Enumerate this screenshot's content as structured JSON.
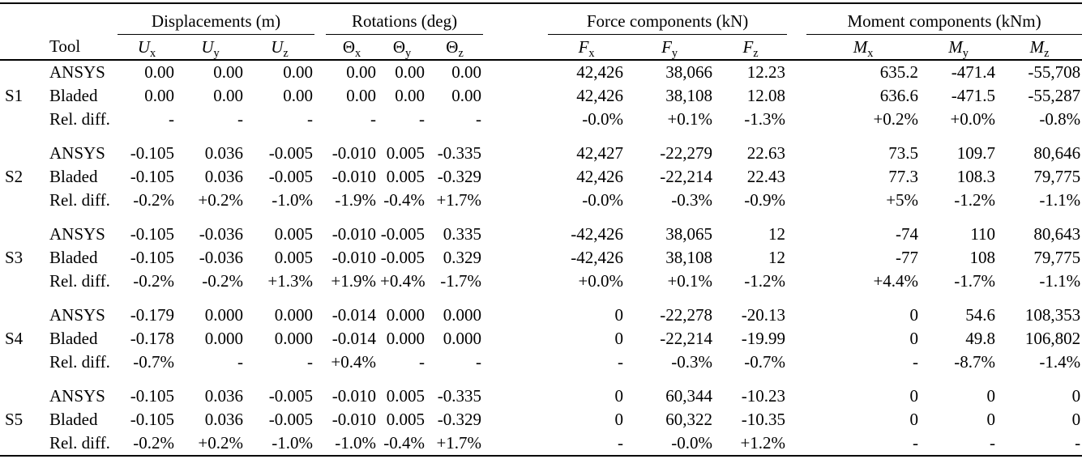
{
  "table": {
    "tool_header": "Tool",
    "row_labels": [
      "ANSYS",
      "Bladed",
      "Rel. diff."
    ],
    "column_groups": [
      {
        "key": "u",
        "label": "Displacements (m)",
        "italic": true,
        "columns": [
          {
            "main": "U",
            "sub": "x"
          },
          {
            "main": "U",
            "sub": "y"
          },
          {
            "main": "U",
            "sub": "z"
          }
        ]
      },
      {
        "key": "theta",
        "label": "Rotations (deg)",
        "italic": false,
        "columns": [
          {
            "main": "Θ",
            "sub": "x"
          },
          {
            "main": "Θ",
            "sub": "y"
          },
          {
            "main": "Θ",
            "sub": "z"
          }
        ]
      },
      {
        "key": "f",
        "label": "Force components (kN)",
        "italic": true,
        "columns": [
          {
            "main": "F",
            "sub": "x"
          },
          {
            "main": "F",
            "sub": "y"
          },
          {
            "main": "F",
            "sub": "z"
          }
        ]
      },
      {
        "key": "m",
        "label": "Moment components (kNm)",
        "italic": true,
        "columns": [
          {
            "main": "M",
            "sub": "x"
          },
          {
            "main": "M",
            "sub": "y"
          },
          {
            "main": "M",
            "sub": "z"
          }
        ]
      }
    ],
    "row_groups": [
      {
        "id": "S1",
        "rows": [
          {
            "tool": "ANSYS",
            "values": [
              "0.00",
              "0.00",
              "0.00",
              "0.00",
              "0.00",
              "0.00",
              "42,426",
              "38,066",
              "12.23",
              "635.2",
              "-471.4",
              "-55,708"
            ]
          },
          {
            "tool": "Bladed",
            "values": [
              "0.00",
              "0.00",
              "0.00",
              "0.00",
              "0.00",
              "0.00",
              "42,426",
              "38,108",
              "12.08",
              "636.6",
              "-471.5",
              "-55,287"
            ]
          },
          {
            "tool": "Rel. diff.",
            "values": [
              "-",
              "-",
              "-",
              "-",
              "-",
              "-",
              "-0.0%",
              "+0.1%",
              "-1.3%",
              "+0.2%",
              "+0.0%",
              "-0.8%"
            ]
          }
        ]
      },
      {
        "id": "S2",
        "rows": [
          {
            "tool": "ANSYS",
            "values": [
              "-0.105",
              "0.036",
              "-0.005",
              "-0.010",
              "0.005",
              "-0.335",
              "42,427",
              "-22,279",
              "22.63",
              "73.5",
              "109.7",
              "80,646"
            ]
          },
          {
            "tool": "Bladed",
            "values": [
              "-0.105",
              "0.036",
              "-0.005",
              "-0.010",
              "0.005",
              "-0.329",
              "42,426",
              "-22,214",
              "22.43",
              "77.3",
              "108.3",
              "79,775"
            ]
          },
          {
            "tool": "Rel. diff.",
            "values": [
              "-0.2%",
              "+0.2%",
              "-1.0%",
              "-1.9%",
              "-0.4%",
              "+1.7%",
              "-0.0%",
              "-0.3%",
              "-0.9%",
              "+5%",
              "-1.2%",
              "-1.1%"
            ]
          }
        ]
      },
      {
        "id": "S3",
        "rows": [
          {
            "tool": "ANSYS",
            "values": [
              "-0.105",
              "-0.036",
              "0.005",
              "-0.010",
              "-0.005",
              "0.335",
              "-42,426",
              "38,065",
              "12",
              "-74",
              "110",
              "80,643"
            ]
          },
          {
            "tool": "Bladed",
            "values": [
              "-0.105",
              "-0.036",
              "0.005",
              "-0.010",
              "-0.005",
              "0.329",
              "-42,426",
              "38,108",
              "12",
              "-77",
              "108",
              "79,775"
            ]
          },
          {
            "tool": "Rel. diff.",
            "values": [
              "-0.2%",
              "-0.2%",
              "+1.3%",
              "+1.9%",
              "+0.4%",
              "-1.7%",
              "+0.0%",
              "+0.1%",
              "-1.2%",
              "+4.4%",
              "-1.7%",
              "-1.1%"
            ]
          }
        ]
      },
      {
        "id": "S4",
        "rows": [
          {
            "tool": "ANSYS",
            "values": [
              "-0.179",
              "0.000",
              "0.000",
              "-0.014",
              "0.000",
              "0.000",
              "0",
              "-22,278",
              "-20.13",
              "0",
              "54.6",
              "108,353"
            ]
          },
          {
            "tool": "Bladed",
            "values": [
              "-0.178",
              "0.000",
              "0.000",
              "-0.014",
              "0.000",
              "0.000",
              "0",
              "-22,214",
              "-19.99",
              "0",
              "49.8",
              "106,802"
            ]
          },
          {
            "tool": "Rel. diff.",
            "values": [
              "-0.7%",
              "-",
              "-",
              "+0.4%",
              "-",
              "-",
              "-",
              "-0.3%",
              "-0.7%",
              "-",
              "-8.7%",
              "-1.4%"
            ]
          }
        ]
      },
      {
        "id": "S5",
        "rows": [
          {
            "tool": "ANSYS",
            "values": [
              "-0.105",
              "0.036",
              "-0.005",
              "-0.010",
              "0.005",
              "-0.335",
              "0",
              "60,344",
              "-10.23",
              "0",
              "0",
              "0"
            ]
          },
          {
            "tool": "Bladed",
            "values": [
              "-0.105",
              "0.036",
              "-0.005",
              "-0.010",
              "0.005",
              "-0.329",
              "0",
              "60,322",
              "-10.35",
              "0",
              "0",
              "0"
            ]
          },
          {
            "tool": "Rel. diff.",
            "values": [
              "-0.2%",
              "+0.2%",
              "-1.0%",
              "-1.0%",
              "-0.4%",
              "+1.7%",
              "-",
              "-0.0%",
              "+1.2%",
              "-",
              "-",
              "-"
            ]
          }
        ]
      }
    ]
  },
  "colors": {
    "text": "#000000",
    "background": "#ffffff",
    "rule": "#000000"
  }
}
